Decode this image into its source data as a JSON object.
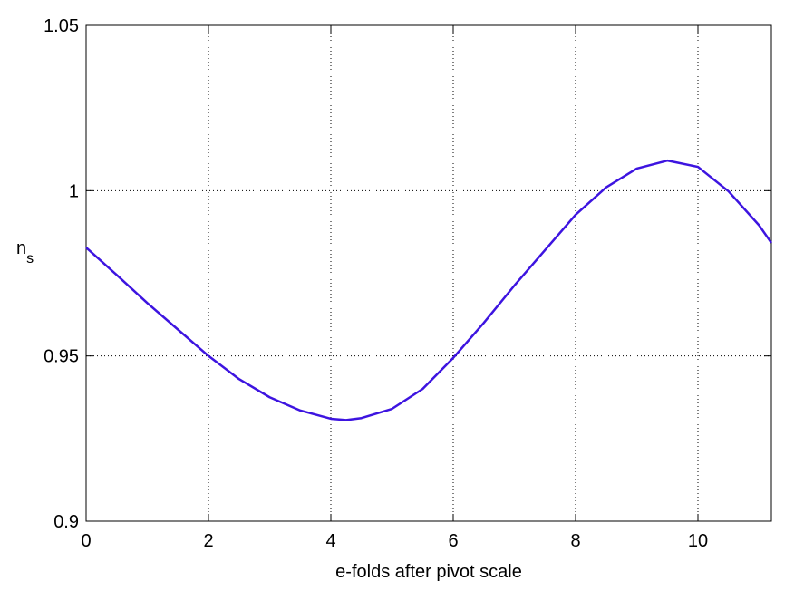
{
  "chart_data": {
    "type": "line",
    "xlabel": "e-folds after pivot scale",
    "ylabel": {
      "base": "n",
      "subscript": "s"
    },
    "x": [
      0,
      0.5,
      1,
      1.5,
      2,
      2.5,
      3,
      3.5,
      4,
      4.25,
      4.5,
      5,
      5.5,
      6,
      6.5,
      7,
      7.5,
      8,
      8.5,
      9,
      9.5,
      10,
      10.5,
      11,
      11.2
    ],
    "series": [
      {
        "color": "#3d14e0",
        "values": [
          0.9828,
          0.9745,
          0.966,
          0.958,
          0.95,
          0.943,
          0.9375,
          0.9335,
          0.931,
          0.9306,
          0.9312,
          0.934,
          0.94,
          0.9494,
          0.96,
          0.9713,
          0.982,
          0.9927,
          1.001,
          1.0067,
          1.0091,
          1.0072,
          0.9998,
          0.9895,
          0.9842
        ]
      }
    ],
    "xlim": [
      0,
      11.2
    ],
    "ylim": [
      0.9,
      1.05
    ],
    "xticks": [
      0,
      2,
      4,
      6,
      8,
      10
    ],
    "yticks": [
      0.9,
      0.95,
      1,
      1.05
    ],
    "grid": true
  }
}
